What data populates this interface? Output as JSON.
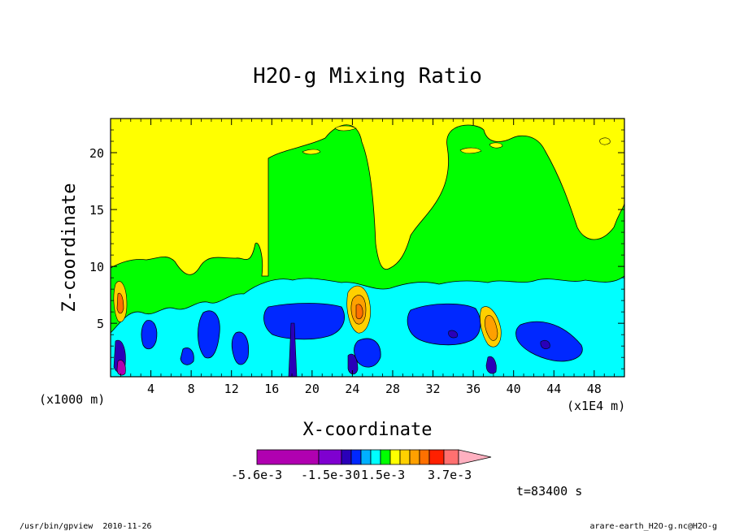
{
  "chart_data": {
    "type": "contour",
    "title": "H2O-g Mixing Ratio",
    "xlabel": "X-coordinate",
    "ylabel": "Z-coordinate",
    "x_scale_note": "(x1000 m)",
    "x_unit_note": "(x1E4 m)",
    "x_ticks": [
      4,
      8,
      12,
      16,
      20,
      24,
      28,
      32,
      36,
      40,
      44,
      48
    ],
    "y_ticks": [
      5,
      10,
      15,
      20
    ],
    "xlim": [
      0,
      51
    ],
    "ylim": [
      0.3,
      23
    ],
    "colorbar": {
      "colors": [
        "#b000b0",
        "#b000b0",
        "#7f00d0",
        "#2a00b8",
        "#0028ff",
        "#00b0ff",
        "#00ffff",
        "#00ff00",
        "#ffff00",
        "#ffd000",
        "#ffa000",
        "#ff7000",
        "#ff2000",
        "#ff7070",
        "#ffb0c0"
      ],
      "tick_labels": [
        "-5.6e-3",
        "-1.5e-3",
        "0",
        "1.5e-3",
        "3.7e-3"
      ]
    },
    "time_label": "t=83400 s",
    "background_level_color": "#ffff00",
    "regions": [
      {
        "name": "green-band",
        "color": "#00ff00",
        "z_top": 9
      },
      {
        "name": "left-column",
        "color": "#00ff00",
        "x": [
          15,
          24
        ],
        "z_top": 21
      },
      {
        "name": "right-column",
        "color": "#00ff00",
        "x": [
          30,
          41
        ],
        "z_top": 21
      },
      {
        "name": "cyan-layer",
        "color": "#00ffff",
        "z_top": 8.5
      },
      {
        "name": "blue-cores",
        "color": "#0028ff",
        "z_top": 6.5
      },
      {
        "name": "orange-plumes",
        "color": "#ffa000",
        "x": [
          1,
          24,
          37
        ]
      }
    ]
  },
  "footer": {
    "left": "/usr/bin/gpview  2010-11-26",
    "right": "arare-earth_H2O-g.nc@H2O-g"
  }
}
